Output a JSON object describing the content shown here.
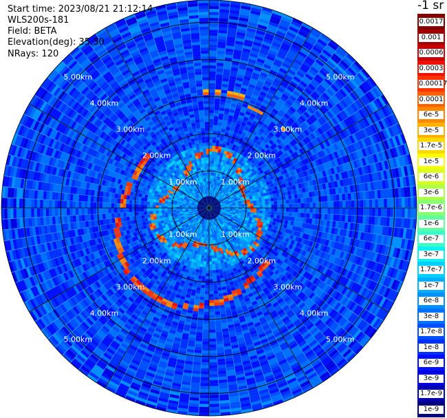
{
  "header": {
    "start_time": "Start time: 2023/08/21 21:12:14",
    "instrument": "WLS200s-181",
    "field": "Field: BETA",
    "elevation": "Elevation(deg): 35.30",
    "nrays": "NRays: 120"
  },
  "range_rings": [
    {
      "label": "1.00km",
      "km": 1
    },
    {
      "label": "2.00km",
      "km": 2
    },
    {
      "label": "3.00km",
      "km": 3
    },
    {
      "label": "4.00km",
      "km": 4
    },
    {
      "label": "5.00km",
      "km": 5
    }
  ],
  "max_range_km": 5.6,
  "n_rays": 120,
  "colorbar": {
    "unit": "-1 sr",
    "labels": [
      "0.0017",
      "0.001",
      "0.0006",
      "0.0003",
      "0.00017",
      "0.0001",
      "6e-5",
      "3e-5",
      "1.7e-5",
      "1e-5",
      "6e-6",
      "3e-6",
      "1.7e-6",
      "1e-6",
      "6e-7",
      "3e-7",
      "1.7e-7",
      "1e-7",
      "6e-8",
      "3e-8",
      "1.7e-8",
      "1e-8",
      "6e-9",
      "3e-9",
      "1.7e-9",
      "1e-9"
    ],
    "colors": [
      "#800000",
      "#a00000",
      "#c80000",
      "#ee1000",
      "#ff3300",
      "#ff6000",
      "#ff8800",
      "#ffb000",
      "#ffd800",
      "#ffff00",
      "#d8ff20",
      "#b0ff48",
      "#88ff70",
      "#60ffa0",
      "#38ffc8",
      "#10f0ef",
      "#00d0ff",
      "#00b0ff",
      "#0090ff",
      "#0070ff",
      "#0050ff",
      "#0030ff",
      "#0010ff",
      "#0000e0",
      "#0000b0",
      "#000080"
    ]
  }
}
